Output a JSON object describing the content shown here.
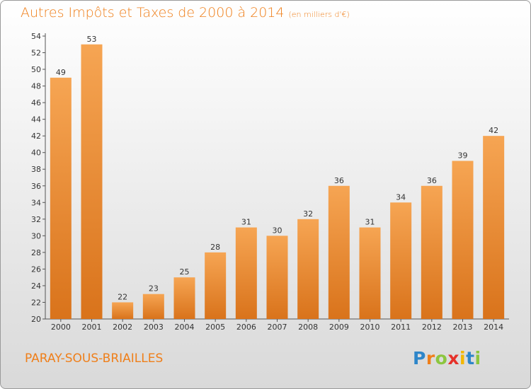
{
  "title": "Autres Impôts et Taxes de 2000 à 2014",
  "unit": "(en milliers d'€)",
  "commune": "PARAY-SOUS-BRIAILLES",
  "logo": {
    "letters": [
      "P",
      "r",
      "o",
      "x",
      "i",
      "t",
      "i"
    ],
    "colors": [
      "#2e86c9",
      "#ef7f1a",
      "#8cc63f",
      "#e6312a",
      "#f3b700",
      "#2e86c9",
      "#8cc63f"
    ]
  },
  "colors": {
    "bar_light": "#f6a553",
    "bar_dark": "#d9731b",
    "title": "#ef7f1a"
  },
  "chart_data": {
    "type": "bar",
    "title": "Autres Impôts et Taxes de 2000 à 2014",
    "subtitle": "(en milliers d'€)",
    "categories": [
      "2000",
      "2001",
      "2002",
      "2003",
      "2004",
      "2005",
      "2006",
      "2007",
      "2008",
      "2009",
      "2010",
      "2011",
      "2012",
      "2013",
      "2014"
    ],
    "values": [
      49,
      53,
      22,
      23,
      25,
      28,
      31,
      30,
      32,
      36,
      31,
      34,
      36,
      39,
      42
    ],
    "ylim": [
      20,
      54
    ],
    "yticks": [
      20,
      22,
      24,
      26,
      28,
      30,
      32,
      34,
      36,
      38,
      40,
      42,
      44,
      46,
      48,
      50,
      52,
      54
    ],
    "grid": false,
    "legend": "none"
  }
}
